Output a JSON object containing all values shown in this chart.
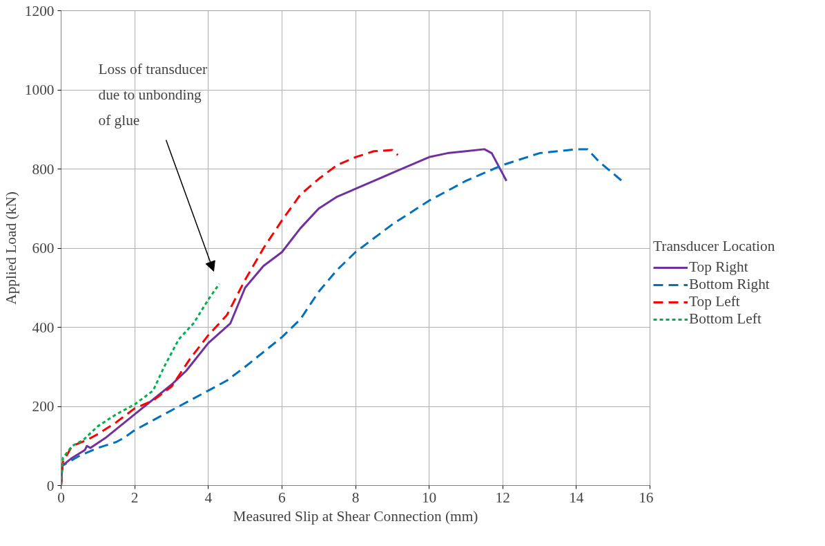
{
  "chart_data": {
    "type": "line",
    "xlabel": "Measured Slip at Shear Connection (mm)",
    "ylabel": "Applied Load (kN)",
    "legend_title": "Transducer Location",
    "legend": "right",
    "grid": true,
    "marker": "none",
    "xlim": [
      0,
      16
    ],
    "xticks": [
      0,
      2,
      4,
      6,
      8,
      10,
      12,
      14,
      16
    ],
    "ylim": [
      0,
      1200
    ],
    "yticks": [
      0,
      200,
      400,
      600,
      800,
      1000,
      1200
    ],
    "annotations": [
      "Loss of transducer\ndue to unbonding\nof glue"
    ],
    "series": [
      {
        "name": "Top Right",
        "color": "#7030a0",
        "line_style": "solid",
        "x": [
          0,
          0.03,
          0.3,
          0.65,
          0.7,
          0.8,
          1.2,
          2,
          3,
          3.4,
          4,
          4.6,
          5,
          5.5,
          6,
          6.5,
          7,
          7.5,
          8,
          9,
          10,
          10.5,
          11,
          11.5,
          11.7,
          12.1
        ],
        "values": [
          0,
          50,
          70,
          90,
          100,
          95,
          120,
          180,
          255,
          290,
          360,
          410,
          500,
          555,
          590,
          650,
          700,
          730,
          750,
          790,
          830,
          840,
          845,
          850,
          840,
          770
        ]
      },
      {
        "name": "Bottom Right",
        "color": "#0070c0",
        "line_style": "dashed",
        "x": [
          0,
          0.03,
          0.5,
          1,
          1.5,
          1.7,
          2,
          3,
          4,
          4.5,
          5,
          6,
          6.5,
          7,
          7.5,
          8,
          9,
          10,
          11,
          11.5,
          12,
          13,
          14,
          14.3,
          14.6,
          15.3
        ],
        "values": [
          0,
          50,
          75,
          95,
          110,
          120,
          140,
          190,
          240,
          265,
          300,
          375,
          420,
          490,
          545,
          590,
          660,
          720,
          770,
          790,
          810,
          840,
          850,
          850,
          820,
          765
        ]
      },
      {
        "name": "Top Left",
        "color": "#ff0000",
        "line_style": "dashed",
        "x": [
          0,
          0.05,
          0.3,
          0.7,
          1,
          1.5,
          2,
          2.5,
          3,
          3.5,
          4,
          4.5,
          5,
          5.5,
          6,
          6.5,
          7,
          7.5,
          8,
          8.5,
          9,
          9.15
        ],
        "values": [
          0,
          60,
          100,
          115,
          130,
          160,
          195,
          215,
          250,
          320,
          380,
          430,
          520,
          600,
          670,
          735,
          775,
          810,
          830,
          845,
          848,
          835
        ]
      },
      {
        "name": "Bottom Left",
        "color": "#00b050",
        "line_style": "dotted",
        "x": [
          0,
          0.05,
          0.3,
          0.6,
          1,
          1.5,
          2,
          2.5,
          2.8,
          3.2,
          3.6,
          4,
          4.3
        ],
        "values": [
          0,
          70,
          100,
          115,
          150,
          180,
          205,
          240,
          300,
          370,
          410,
          470,
          510
        ]
      }
    ]
  }
}
